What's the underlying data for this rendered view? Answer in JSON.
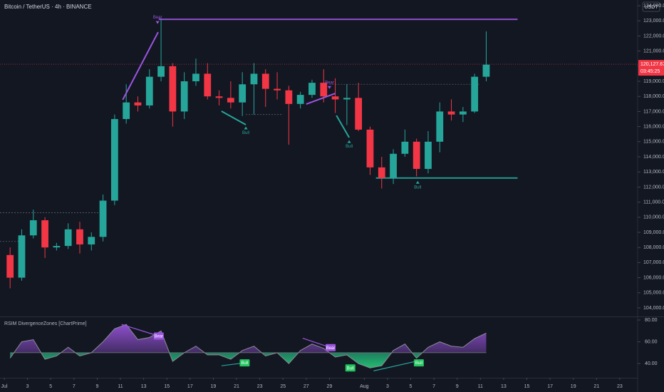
{
  "chart_data": {
    "type": "candlestick",
    "title": "Bitcoin / TetherUS · 4h · BINANCE",
    "currency": "USDT",
    "up_color": "#26a69a",
    "down_color": "#f23645",
    "grid": false,
    "xlim": [
      -0.37,
      54.54
    ],
    "ylim": [
      103480,
      124380
    ],
    "x": [
      0.5,
      1.5,
      2.5,
      3.5,
      4.5,
      5.5,
      6.5,
      7.5,
      8.5,
      9.5,
      10.5,
      11.5,
      12.5,
      13.5,
      14.5,
      15.5,
      16.5,
      17.5,
      18.5,
      19.5,
      20.5,
      21.5,
      22.5,
      23.5,
      24.5,
      25.5,
      26.5,
      27.5,
      28.5,
      29.5,
      30.5,
      31.5,
      32.5,
      33.5,
      34.5,
      35.5,
      36.5,
      37.5,
      38.5,
      39.5,
      40.5,
      41.5
    ],
    "open": [
      107500,
      106000,
      108800,
      109800,
      108000,
      108100,
      109200,
      108200,
      108700,
      111100,
      116500,
      117600,
      117400,
      119300,
      120000,
      117000,
      119000,
      119500,
      118000,
      117900,
      117600,
      118800,
      119500,
      118500,
      118400,
      117500,
      118100,
      118900,
      118000,
      117800,
      117900,
      115800,
      113300,
      112600,
      114200,
      115000,
      113200,
      115000,
      117000,
      116800,
      117000,
      119300
    ],
    "high": [
      108000,
      109200,
      110500,
      110000,
      108300,
      109600,
      109700,
      109000,
      111500,
      116800,
      118800,
      118000,
      119800,
      123100,
      120200,
      119600,
      120500,
      120200,
      118400,
      119000,
      119600,
      120200,
      119800,
      119600,
      118700,
      118300,
      119100,
      119800,
      119200,
      118800,
      118900,
      116000,
      114000,
      114500,
      115800,
      115200,
      115700,
      117600,
      117800,
      117300,
      119500,
      122300
    ],
    "low": [
      105300,
      105800,
      108600,
      107300,
      107800,
      107900,
      107600,
      107800,
      108400,
      110800,
      116200,
      117000,
      117200,
      119000,
      116000,
      116500,
      118700,
      117800,
      117400,
      117200,
      116700,
      116800,
      117300,
      117800,
      114800,
      117200,
      117900,
      117600,
      116900,
      116100,
      115700,
      112800,
      111900,
      112200,
      114000,
      112700,
      112900,
      114300,
      116400,
      116300,
      116900,
      119000
    ],
    "close": [
      106000,
      108800,
      109800,
      108000,
      108100,
      109200,
      108200,
      108700,
      111100,
      116500,
      117600,
      117400,
      119300,
      120000,
      117000,
      119000,
      119500,
      118000,
      117900,
      117600,
      118800,
      119500,
      118500,
      118400,
      117500,
      118100,
      118900,
      118000,
      117800,
      117900,
      115800,
      113300,
      112600,
      114200,
      115000,
      113200,
      115000,
      117000,
      116800,
      117000,
      119300,
      120100
    ],
    "current_price": {
      "value": 120127.67,
      "label": "120,127.67"
    },
    "countdown": "03:45:25",
    "yticks": [
      {
        "value": 104000,
        "label": "104,000.00"
      },
      {
        "value": 105000,
        "label": "105,000.00"
      },
      {
        "value": 106000,
        "label": "106,000.00"
      },
      {
        "value": 107000,
        "label": "107,000.00"
      },
      {
        "value": 108000,
        "label": "108,000.00"
      },
      {
        "value": 109000,
        "label": "109,000.00"
      },
      {
        "value": 110000,
        "label": "110,000.00"
      },
      {
        "value": 111000,
        "label": "111,000.00"
      },
      {
        "value": 112000,
        "label": "112,000.00"
      },
      {
        "value": 113000,
        "label": "113,000.00"
      },
      {
        "value": 114000,
        "label": "114,000.00"
      },
      {
        "value": 115000,
        "label": "115,000.00"
      },
      {
        "value": 116000,
        "label": "116,000.00"
      },
      {
        "value": 117000,
        "label": "117,000.00"
      },
      {
        "value": 118000,
        "label": "118,000.00"
      },
      {
        "value": 119000,
        "label": "119,000.00"
      },
      {
        "value": 120000,
        "label": "120,000.00"
      },
      {
        "value": 121000,
        "label": "121,000.00"
      },
      {
        "value": 122000,
        "label": "122,000.00"
      },
      {
        "value": 123000,
        "label": "123,000.00"
      },
      {
        "value": 124000,
        "label": "124,000.00"
      }
    ],
    "xticks": [
      {
        "value": 0,
        "label": "Jul"
      },
      {
        "value": 2,
        "label": "3"
      },
      {
        "value": 4,
        "label": "5"
      },
      {
        "value": 6,
        "label": "7"
      },
      {
        "value": 8,
        "label": "9"
      },
      {
        "value": 10,
        "label": "11"
      },
      {
        "value": 12,
        "label": "13"
      },
      {
        "value": 14,
        "label": "15"
      },
      {
        "value": 16,
        "label": "17"
      },
      {
        "value": 18,
        "label": "19"
      },
      {
        "value": 20,
        "label": "21"
      },
      {
        "value": 22,
        "label": "23"
      },
      {
        "value": 24,
        "label": "25"
      },
      {
        "value": 26,
        "label": "27"
      },
      {
        "value": 28,
        "label": "29"
      },
      {
        "value": 31,
        "label": "Aug"
      },
      {
        "value": 33,
        "label": "3"
      },
      {
        "value": 35,
        "label": "5"
      },
      {
        "value": 37,
        "label": "7"
      },
      {
        "value": 39,
        "label": "9"
      },
      {
        "value": 41,
        "label": "11"
      },
      {
        "value": 43,
        "label": "13"
      },
      {
        "value": 45,
        "label": "15"
      },
      {
        "value": 47,
        "label": "17"
      },
      {
        "value": 49,
        "label": "19"
      },
      {
        "value": 51,
        "label": "21"
      },
      {
        "value": 53,
        "label": "23"
      }
    ],
    "levels": [
      {
        "value": 123100,
        "from": 13.3,
        "to": 44.2,
        "color": "#9c55e0",
        "style": "solid"
      },
      {
        "value": 112600,
        "from": 32.0,
        "to": 44.2,
        "color": "#26a69a",
        "style": "solid"
      },
      {
        "value": 118800,
        "from": 28.0,
        "to": 41.0,
        "color": "#787b86",
        "style": "dashed"
      },
      {
        "value": 116800,
        "from": 20.8,
        "to": 24.0,
        "color": "#787b86",
        "style": "dashed"
      },
      {
        "value": 110300,
        "from": -0.37,
        "to": 8.8,
        "color": "#787b86",
        "style": "dashed"
      },
      {
        "value": 108400,
        "from": -0.37,
        "to": 1.8,
        "color": "#787b86",
        "style": "dashed"
      }
    ],
    "divergences": [
      {
        "from": [
          10.2,
          117774
        ],
        "to": [
          13.25,
          122255
        ],
        "color": "#9c55e0"
      },
      {
        "from": [
          18.7,
          117019
        ],
        "to": [
          20.8,
          116123
        ],
        "color": "#26a69a"
      },
      {
        "from": [
          26.0,
          117491
        ],
        "to": [
          28.5,
          118198
        ],
        "color": "#9c55e0"
      },
      {
        "from": [
          28.6,
          116736
        ],
        "to": [
          29.7,
          115274
        ],
        "color": "#26a69a"
      }
    ],
    "signals": [
      {
        "label": "Bear",
        "x": 13.2,
        "y": 122700
      },
      {
        "label": "Bull",
        "x": 20.8,
        "y": 116100
      },
      {
        "label": "Bear",
        "x": 28.0,
        "y": 118400
      },
      {
        "label": "Bull",
        "x": 29.7,
        "y": 115200
      },
      {
        "label": "Bull",
        "x": 35.6,
        "y": 112500
      }
    ],
    "rsi": {
      "name": "RSIM DivergenceZones [ChartPrime]",
      "ylim": [
        27,
        82
      ],
      "yticks": [
        {
          "value": 40,
          "label": "40.00"
        },
        {
          "value": 60,
          "label": "60.00"
        },
        {
          "value": 80,
          "label": "80.00"
        }
      ],
      "midline": 50,
      "values": [
        45,
        60,
        62,
        44,
        47,
        55,
        47,
        50,
        60,
        72,
        76,
        62,
        64,
        70,
        42,
        50,
        56,
        48,
        48,
        44,
        52,
        56,
        47,
        50,
        40,
        52,
        58,
        54,
        46,
        48,
        40,
        36,
        38,
        52,
        58,
        45,
        55,
        60,
        56,
        55,
        63,
        68
      ],
      "divergences": [
        {
          "from": [
            10.1,
            76
          ],
          "to": [
            13.3,
            65.3
          ],
          "color": "#9c55e0"
        },
        {
          "from": [
            18.7,
            38
          ],
          "to": [
            20.7,
            40.7
          ],
          "color": "#26a69a"
        },
        {
          "from": [
            25.7,
            63.3
          ],
          "to": [
            28.1,
            54.7
          ],
          "color": "#9c55e0"
        },
        {
          "from": [
            31.8,
            33.3
          ],
          "to": [
            35.7,
            42.7
          ],
          "color": "#26a69a"
        }
      ],
      "signals": [
        {
          "label": "Bear",
          "x": 13.3,
          "y": 65.3
        },
        {
          "label": "Bull",
          "x": 20.7,
          "y": 40.7
        },
        {
          "label": "Bear",
          "x": 28.1,
          "y": 54.7
        },
        {
          "label": "Bull",
          "x": 29.8,
          "y": 36
        },
        {
          "label": "Bull",
          "x": 35.7,
          "y": 40.7
        }
      ]
    }
  }
}
